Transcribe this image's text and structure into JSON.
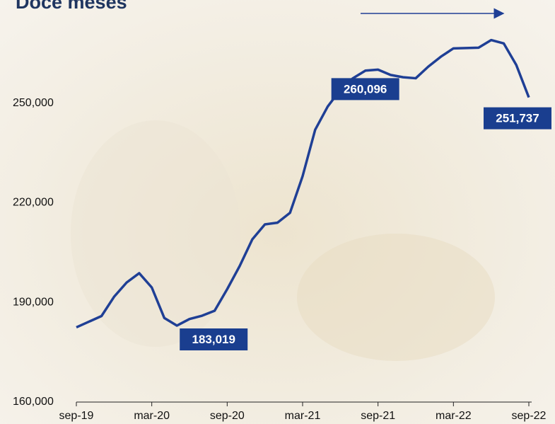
{
  "chart_data": {
    "type": "line",
    "title": "Doce meses",
    "categories": [
      "sep-19",
      null,
      null,
      null,
      null,
      null,
      "mar-20",
      null,
      null,
      null,
      null,
      null,
      "sep-20",
      null,
      null,
      null,
      null,
      null,
      "mar-21",
      null,
      null,
      null,
      null,
      null,
      "sep-21",
      null,
      null,
      null,
      null,
      null,
      "mar-22",
      null,
      null,
      null,
      null,
      null,
      "sep-22"
    ],
    "series": [
      {
        "name": null,
        "color": "#1f3f95",
        "values": [
          182500,
          184200,
          185900,
          191700,
          196000,
          198800,
          194500,
          185300,
          183019,
          185000,
          186000,
          187500,
          194000,
          201000,
          209000,
          213500,
          214000,
          217000,
          228000,
          242000,
          249000,
          254000,
          257500,
          259800,
          260096,
          258500,
          257800,
          257500,
          261000,
          264000,
          266500,
          266600,
          266700,
          269000,
          268000,
          261500,
          251737
        ],
        "value_labels": [
          null,
          null,
          null,
          null,
          null,
          null,
          null,
          null,
          "183,019",
          null,
          null,
          null,
          null,
          null,
          null,
          null,
          null,
          null,
          null,
          null,
          null,
          null,
          null,
          null,
          "260,096",
          null,
          null,
          null,
          null,
          null,
          null,
          null,
          null,
          null,
          null,
          null,
          "251,737"
        ]
      }
    ],
    "ylim": [
      160000,
      280000
    ],
    "yticks": [
      {
        "value": 160000,
        "label": "160,000"
      },
      {
        "value": 190000,
        "label": "190,000"
      },
      {
        "value": 220000,
        "label": "220,000"
      },
      {
        "value": 250000,
        "label": "250,000"
      }
    ],
    "grid": false
  }
}
